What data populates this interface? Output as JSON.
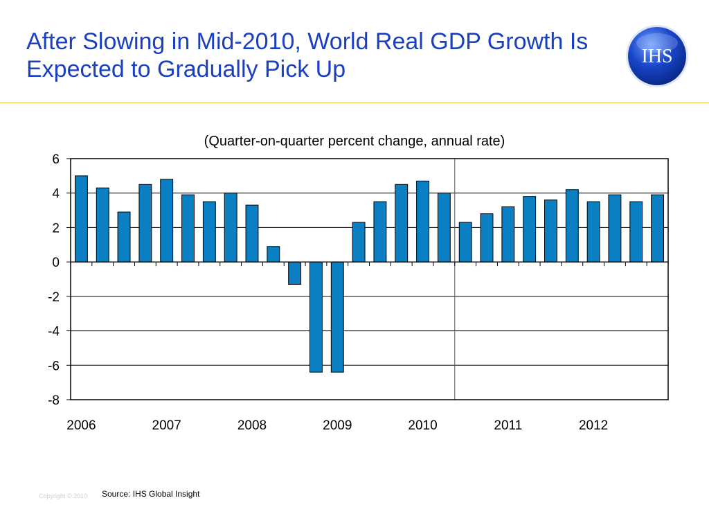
{
  "title": "After Slowing in Mid-2010, World Real GDP Growth Is Expected to Gradually Pick Up",
  "logo_text": "IHS",
  "colors": {
    "title": "#1a3fc0",
    "bar": "#0a7fc2",
    "rule": "#f0c040",
    "logo": "#1340b8"
  },
  "source": "Source: IHS Global Insight",
  "copyright": "Copyright © 2010",
  "chart_data": {
    "type": "bar",
    "title": "(Quarter-on-quarter percent change, annual rate)",
    "xlabel": "",
    "ylabel": "",
    "ylim": [
      -8,
      6
    ],
    "yticks": [
      6,
      4,
      2,
      0,
      -2,
      -4,
      -6,
      -8
    ],
    "grid": true,
    "year_labels": [
      "2006",
      "2007",
      "2008",
      "2009",
      "2010",
      "2011",
      "2012"
    ],
    "quarters_per_year": 4,
    "forecast_divider_after_quarter": 18,
    "values": [
      5.0,
      4.3,
      2.9,
      4.5,
      4.8,
      3.9,
      3.5,
      4.0,
      3.3,
      0.9,
      -1.3,
      -6.4,
      -6.4,
      2.3,
      3.5,
      4.5,
      4.7,
      4.0,
      2.3,
      2.8,
      3.2,
      3.8,
      3.6,
      4.2,
      3.5,
      3.9,
      3.5,
      3.9
    ]
  }
}
